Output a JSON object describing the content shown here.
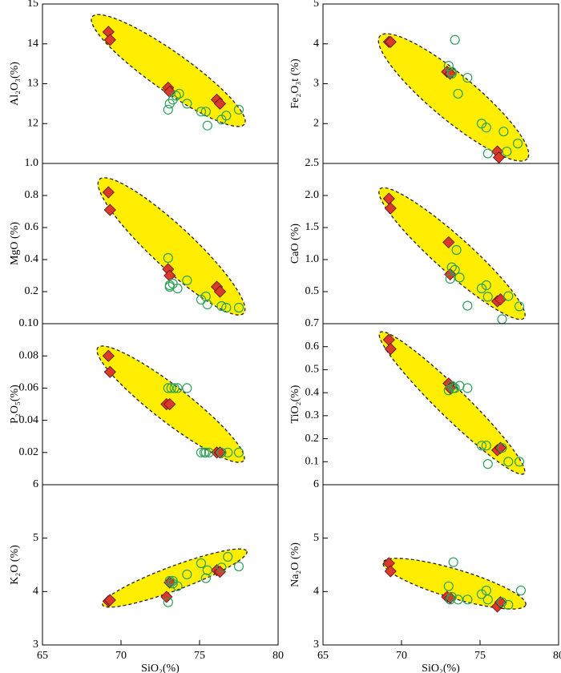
{
  "chart_data": [
    {
      "type": "scatter",
      "ylabel": "Al₂O₃(%)",
      "xlim": [
        65,
        80
      ],
      "ylim": [
        11,
        15
      ],
      "yticks": [
        12,
        13,
        14,
        15
      ],
      "series": [
        {
          "color": "#d93a2b",
          "marker": "diamond",
          "x": [
            69.2,
            69.3,
            73,
            73.1,
            76.1,
            76.3
          ],
          "values": [
            14.3,
            14.1,
            12.9,
            12.8,
            12.6,
            12.5
          ]
        },
        {
          "color": "#2ea05a",
          "marker": "circle",
          "x": [
            73,
            73.1,
            73.3,
            73.5,
            73.7,
            74.2,
            75.1,
            75.4,
            75.5,
            76.4,
            76.7,
            77.5
          ],
          "values": [
            12.35,
            12.5,
            12.6,
            12.7,
            12.75,
            12.5,
            12.3,
            12.3,
            11.95,
            12.1,
            12.2,
            12.35
          ]
        }
      ]
    },
    {
      "type": "scatter",
      "ylabel": "Fe₂O₃t (%)",
      "xlim": [
        65,
        80
      ],
      "ylim": [
        1,
        5
      ],
      "yticks": [
        2,
        3,
        4,
        5
      ],
      "series": [
        {
          "color": "#d93a2b",
          "marker": "diamond",
          "x": [
            69.2,
            69.3,
            72.9,
            73.1,
            76.1,
            76.2
          ],
          "values": [
            4.05,
            4.05,
            3.3,
            3.25,
            1.3,
            1.15
          ]
        },
        {
          "color": "#2ea05a",
          "marker": "circle",
          "x": [
            73.4,
            73,
            73.2,
            73.2,
            73.6,
            74.2,
            75.1,
            75.4,
            75.5,
            76.5,
            76.7,
            77.4
          ],
          "values": [
            4.1,
            3.45,
            3.3,
            3.25,
            2.75,
            3.15,
            2.0,
            1.9,
            1.25,
            1.8,
            1.3,
            1.5
          ]
        }
      ]
    },
    {
      "type": "scatter",
      "ylabel": "MgO (%)",
      "xlim": [
        65,
        80
      ],
      "ylim": [
        0,
        1
      ],
      "yticks": [
        0.2,
        0.4,
        0.6,
        0.8,
        {
          "value": 1,
          "label": "1.0"
        }
      ],
      "series": [
        {
          "color": "#d93a2b",
          "marker": "diamond",
          "x": [
            69.2,
            69.3,
            73,
            73.1,
            76.1,
            76.3
          ],
          "values": [
            0.82,
            0.71,
            0.34,
            0.3,
            0.23,
            0.2
          ]
        },
        {
          "color": "#2ea05a",
          "marker": "circle",
          "x": [
            73,
            73.1,
            73.3,
            73.6,
            74.2,
            75.1,
            75.4,
            75.5,
            76.4,
            76.7,
            77.5,
            73.1
          ],
          "values": [
            0.41,
            0.24,
            0.25,
            0.22,
            0.27,
            0.15,
            0.17,
            0.12,
            0.11,
            0.1,
            0.1,
            0.23
          ]
        }
      ]
    },
    {
      "type": "scatter",
      "ylabel": "CaO (%)",
      "xlim": [
        65,
        80
      ],
      "ylim": [
        0,
        2.5
      ],
      "yticks": [
        0.5,
        {
          "value": 1,
          "label": "1.0"
        },
        1.5,
        {
          "value": 2,
          "label": "2.0"
        },
        2.5
      ],
      "series": [
        {
          "color": "#d93a2b",
          "marker": "diamond",
          "x": [
            69.2,
            69.3,
            73,
            73.1,
            76.1,
            76.3
          ],
          "values": [
            1.95,
            1.8,
            1.27,
            0.77,
            0.35,
            0.38
          ]
        },
        {
          "color": "#2ea05a",
          "marker": "circle",
          "x": [
            73.2,
            73.4,
            73.5,
            73.7,
            74.2,
            75.1,
            75.4,
            75.5,
            76.4,
            76.8,
            77.5,
            73.1
          ],
          "values": [
            0.88,
            0.84,
            1.15,
            0.72,
            0.28,
            0.55,
            0.6,
            0.42,
            0.07,
            0.43,
            0.27,
            0.7
          ]
        }
      ]
    },
    {
      "type": "scatter",
      "ylabel": "P₂O₅(%)",
      "xlim": [
        65,
        80
      ],
      "ylim": [
        0,
        0.1
      ],
      "yticks": [
        0.02,
        0.04,
        0.06,
        0.08,
        {
          "value": 0.1,
          "label": "0.10"
        }
      ],
      "series": [
        {
          "color": "#d93a2b",
          "marker": "diamond",
          "x": [
            69.2,
            69.3,
            72.9,
            73.1,
            76.1,
            76.3
          ],
          "values": [
            0.08,
            0.07,
            0.05,
            0.05,
            0.02,
            0.02
          ]
        },
        {
          "color": "#2ea05a",
          "marker": "circle",
          "x": [
            73,
            73.2,
            73.4,
            73.6,
            74.2,
            75.1,
            75.4,
            75.6,
            76.4,
            76.8,
            77.5,
            75.3
          ],
          "values": [
            0.06,
            0.06,
            0.06,
            0.06,
            0.06,
            0.02,
            0.02,
            0.02,
            0.02,
            0.02,
            0.02,
            0.02
          ]
        }
      ]
    },
    {
      "type": "scatter",
      "ylabel": "TiO₂(%)",
      "xlim": [
        65,
        80
      ],
      "ylim": [
        0,
        0.7
      ],
      "yticks": [
        0.1,
        0.2,
        0.3,
        0.4,
        0.5,
        0.6,
        0.7
      ],
      "series": [
        {
          "color": "#d93a2b",
          "marker": "diamond",
          "x": [
            69.2,
            69.3,
            73,
            73.1,
            76.1,
            76.3
          ],
          "values": [
            0.63,
            0.59,
            0.44,
            0.42,
            0.15,
            0.16
          ]
        },
        {
          "color": "#2ea05a",
          "marker": "circle",
          "x": [
            73,
            73.2,
            73.4,
            73.7,
            74.2,
            75.1,
            75.4,
            75.5,
            76.4,
            76.8,
            77.5,
            73.3
          ],
          "values": [
            0.41,
            0.43,
            0.42,
            0.43,
            0.42,
            0.17,
            0.17,
            0.09,
            0.16,
            0.1,
            0.1,
            0.42
          ]
        }
      ]
    },
    {
      "type": "scatter",
      "ylabel": "K₂O (%)",
      "xlabel": "SiO₂(%)",
      "xlim": [
        65,
        80
      ],
      "ylim": [
        3,
        6
      ],
      "yticks": [
        3,
        4,
        5,
        6
      ],
      "xticks": [
        65,
        70,
        75,
        80
      ],
      "series": [
        {
          "color": "#d93a2b",
          "marker": "diamond",
          "x": [
            69.2,
            69.3,
            72.9,
            73.1,
            76.1,
            76.3
          ],
          "values": [
            3.82,
            3.84,
            3.9,
            4.17,
            4.4,
            4.37
          ]
        },
        {
          "color": "#2ea05a",
          "marker": "circle",
          "x": [
            73,
            73.1,
            73.3,
            73.6,
            74.2,
            75.1,
            75.4,
            75.5,
            76.4,
            76.8,
            77.5,
            73.3
          ],
          "values": [
            3.8,
            4.2,
            4.15,
            4.1,
            4.32,
            4.53,
            4.25,
            4.4,
            4.45,
            4.65,
            4.47,
            4.2
          ]
        }
      ]
    },
    {
      "type": "scatter",
      "ylabel": "Na₂O (%)",
      "xlabel": "SiO₂(%)",
      "xlim": [
        65,
        80
      ],
      "ylim": [
        3,
        6
      ],
      "yticks": [
        3,
        4,
        5,
        6
      ],
      "xticks": [
        65,
        70,
        75,
        80
      ],
      "series": [
        {
          "color": "#d93a2b",
          "marker": "diamond",
          "x": [
            69.2,
            69.3,
            72.9,
            73.1,
            76.1,
            76.3
          ],
          "values": [
            4.53,
            4.38,
            3.9,
            3.88,
            3.72,
            3.8
          ]
        },
        {
          "color": "#2ea05a",
          "marker": "circle",
          "x": [
            73.3,
            73,
            73.2,
            73.6,
            74.2,
            75.1,
            75.4,
            75.5,
            76.4,
            76.8,
            77.6,
            73.1
          ],
          "values": [
            4.55,
            4.1,
            3.9,
            3.85,
            3.85,
            3.95,
            4.02,
            3.85,
            3.8,
            3.75,
            4.02,
            3.85
          ]
        }
      ]
    }
  ]
}
